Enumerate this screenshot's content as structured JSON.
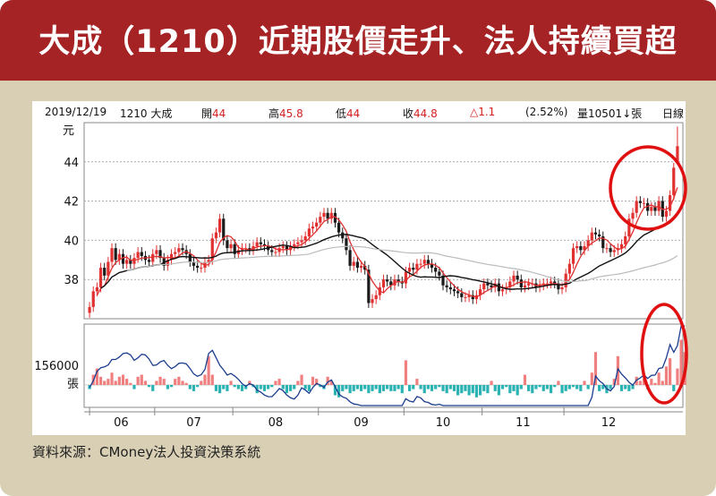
{
  "title": "大成（1210）近期股價走升、法人持續買超",
  "header": {
    "date": "2019/12/19",
    "stock": "1210 大成",
    "open_label": "開",
    "open": "44",
    "high_label": "高",
    "high": "45.8",
    "low_label": "低",
    "low": "44",
    "close_label": "收",
    "close": "44.8",
    "change": "△1.1",
    "pct": "(2.52%)",
    "volume_label": "量",
    "volume": "10501",
    "volume_unit": "↓張",
    "period": "日線"
  },
  "source": "資料來源：CMoney法人投資決策系統",
  "colors": {
    "banner": "#a52325",
    "frame": "#d8cfb4",
    "up": "#e03030",
    "down": "#1a1a1a",
    "highlight_circle": "#e01010",
    "inst_buy": "#f08080",
    "inst_sell": "#2bb3b3",
    "ma_short": "#e03030",
    "ma_mid": "#111111",
    "ma_long": "#bbbbbb",
    "cum_line": "#1a3d8f"
  },
  "chart_data": [
    {
      "type": "candlestick",
      "ylabel": "元",
      "ylim": [
        36,
        46
      ],
      "yticks": [
        "38",
        "40",
        "42",
        "44"
      ],
      "x_ticks": [
        "06",
        "07",
        "08",
        "09",
        "10",
        "11",
        "12"
      ],
      "last": {
        "date": "2019/12/19",
        "open": 44,
        "high": 45.8,
        "low": 44,
        "close": 44.8
      },
      "closes": [
        36.6,
        37.4,
        37.6,
        38.6,
        38.2,
        38.9,
        39.6,
        39.0,
        39.3,
        38.8,
        39.0,
        38.8,
        39.1,
        39.4,
        39.2,
        39.0,
        38.9,
        39.3,
        39.5,
        39.1,
        38.7,
        39.0,
        39.3,
        39.4,
        39.6,
        39.5,
        39.3,
        38.9,
        38.7,
        38.6,
        38.6,
        38.9,
        39.0,
        40.1,
        40.4,
        41.1,
        40.0,
        39.6,
        39.8,
        39.3,
        39.5,
        39.6,
        39.6,
        39.5,
        39.7,
        39.9,
        39.8,
        39.7,
        39.5,
        39.4,
        39.4,
        39.6,
        39.7,
        39.5,
        39.7,
        39.8,
        39.9,
        40.0,
        40.2,
        40.6,
        40.7,
        40.9,
        41.2,
        41.4,
        41.1,
        41.4,
        40.9,
        40.4,
        40.1,
        39.5,
        38.7,
        38.9,
        38.6,
        38.7,
        38.5,
        36.8,
        37.0,
        37.2,
        37.6,
        38.0,
        37.9,
        37.7,
        38.0,
        37.9,
        37.8,
        38.4,
        38.6,
        38.5,
        38.8,
        38.8,
        39.0,
        38.8,
        38.6,
        38.4,
        38.2,
        37.7,
        37.6,
        37.5,
        37.4,
        37.3,
        37.1,
        37.1,
        37.2,
        37.0,
        37.2,
        37.5,
        37.8,
        37.7,
        37.6,
        37.8,
        37.4,
        37.5,
        37.6,
        37.9,
        38.2,
        38.0,
        37.6,
        37.7,
        37.8,
        37.8,
        37.6,
        37.7,
        37.8,
        37.8,
        37.9,
        37.8,
        37.5,
        37.6,
        38.3,
        38.8,
        39.6,
        39.7,
        39.5,
        39.7,
        40.0,
        40.4,
        40.3,
        40.2,
        39.6,
        39.6,
        39.4,
        39.5,
        39.6,
        39.8,
        40.2,
        41.1,
        41.4,
        42.0,
        41.9,
        41.9,
        41.5,
        41.7,
        41.5,
        42.0,
        41.2,
        41.5,
        42.3,
        43.7,
        44.8
      ]
    },
    {
      "type": "bar",
      "ylabel": "張",
      "yticks": [
        "156000"
      ],
      "series": [
        {
          "values": [
            -2,
            5,
            8,
            4,
            2,
            3,
            6,
            2,
            4,
            5,
            3,
            1,
            -2,
            4,
            5,
            2,
            -1,
            -3,
            2,
            4,
            3,
            -2,
            -1,
            3,
            4,
            2,
            1,
            -2,
            -3,
            -1,
            2,
            5,
            14,
            5,
            -3,
            -4,
            -2,
            -3,
            2,
            -1,
            -2,
            -3,
            -2,
            2,
            -1,
            -4,
            -2,
            -3,
            -2,
            -1,
            2,
            3,
            -2,
            -4,
            -3,
            -2,
            2,
            5,
            -2,
            -3,
            4,
            3,
            -1,
            -2,
            4,
            2,
            -5,
            -6,
            -3,
            -2,
            -4,
            -3,
            -2,
            -3,
            -2,
            -4,
            -3,
            -2,
            -4,
            -3,
            -2,
            -3,
            -3,
            -2,
            -4,
            12,
            -3,
            -2,
            3,
            -2,
            -4,
            -2,
            -3,
            -2,
            -1,
            -3,
            -4,
            -2,
            -3,
            -5,
            -4,
            -3,
            -5,
            -4,
            -6,
            -5,
            -3,
            -4,
            2,
            -3,
            -5,
            -2,
            -1,
            -4,
            -3,
            -5,
            -2,
            5,
            -3,
            -4,
            -2,
            -1,
            -3,
            -2,
            -4,
            -1,
            2,
            -4,
            -3,
            -2,
            -1,
            -2,
            -3,
            2,
            -2,
            6,
            16,
            -3,
            -2,
            -4,
            -2,
            3,
            14,
            -3,
            -2,
            -3,
            -2,
            4,
            2,
            3,
            -2,
            3,
            1,
            6,
            2,
            9,
            13,
            -3,
            8,
            22,
            16
          ]
        }
      ]
    }
  ]
}
